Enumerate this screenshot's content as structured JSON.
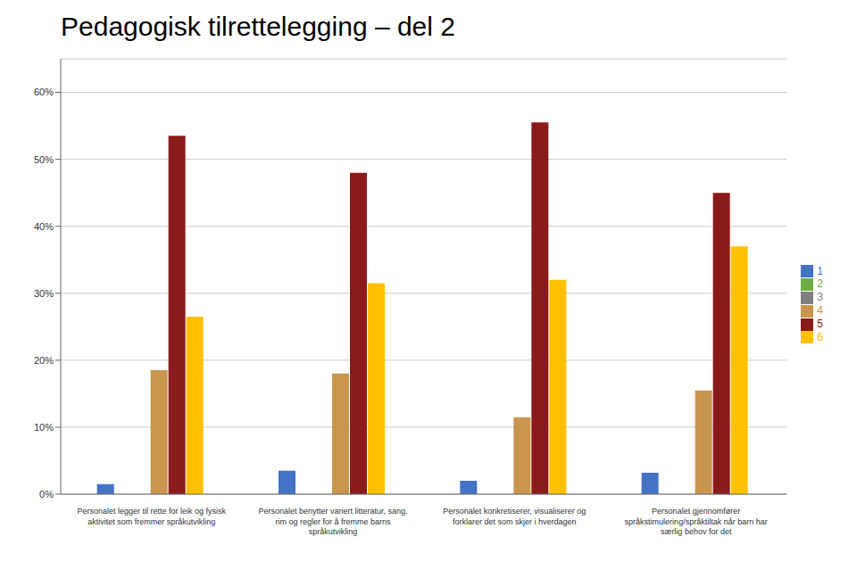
{
  "chart_data": {
    "type": "bar",
    "title": "Pedagogisk tilrettelegging – del 2",
    "categories": [
      "Personalet legger til rette for leik og fysisk\naktivitet som fremmer språkutvikling",
      "Personalet benytter variert litteratur, sang,\nrim og regler for å fremme barns\nspråkutvikling",
      "Personalet konkretiserer, visualiserer og\nforklarer det som skjer i hverdagen",
      "Personalet gjennomfører\nspråkstimulering/språktiltak når barn har\nsærlig behov for det"
    ],
    "series": [
      {
        "name": "1",
        "color": "#4472C4",
        "values": [
          0.015,
          0.035,
          0.02,
          0.032
        ]
      },
      {
        "name": "2",
        "color": "#70AD47",
        "values": [
          0.0,
          0.0,
          0.0,
          0.0
        ]
      },
      {
        "name": "3",
        "color": "#7F7F7F",
        "values": [
          0.0,
          0.0,
          0.0,
          0.0
        ]
      },
      {
        "name": "4",
        "color": "#C8964E",
        "values": [
          0.185,
          0.18,
          0.115,
          0.155
        ]
      },
      {
        "name": "5",
        "color": "#8B1A1A",
        "values": [
          0.535,
          0.48,
          0.555,
          0.45
        ]
      },
      {
        "name": "6",
        "color": "#FFC000",
        "values": [
          0.265,
          0.315,
          0.32,
          0.37
        ]
      }
    ],
    "ylim": [
      0,
      0.65
    ],
    "yticks": [
      {
        "value": 0.0,
        "label": "0%"
      },
      {
        "value": 0.1,
        "label": "10%"
      },
      {
        "value": 0.2,
        "label": "20%"
      },
      {
        "value": 0.3,
        "label": "30%"
      },
      {
        "value": 0.4,
        "label": "40%"
      },
      {
        "value": 0.5,
        "label": "50%"
      },
      {
        "value": 0.6,
        "label": "60%"
      }
    ],
    "grid": true,
    "legend": "right"
  }
}
